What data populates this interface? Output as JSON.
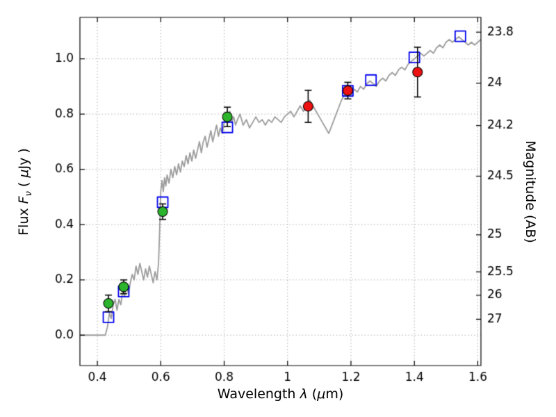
{
  "figure": {
    "background": "#ffffff",
    "frame_color": "#000000",
    "grid_color": "#b0b0b0",
    "tick_label_color": "#000000"
  },
  "chart_data": {
    "type": "line+scatter",
    "title": "",
    "xlabel": "Wavelength  λ (μm)",
    "xlabel_parts": {
      "pre": "Wavelength  ",
      "symbol": "λ",
      "paren": " (",
      "mu": "μ",
      "unit": "m)"
    },
    "ylabel_left": "Flux  F_ν  ( μJy )",
    "ylabel_left_parts": {
      "pre": "Flux  ",
      "symbol": "F",
      "sub": "ν",
      "paren": "  ( ",
      "mu": "μ",
      "unit": "Jy )"
    },
    "ylabel_right": "Magnitude (AB)",
    "xlim": [
      0.345,
      1.61
    ],
    "ylim": [
      -0.11,
      1.15
    ],
    "grid": "dotted",
    "legend": "none",
    "x_ticks": [
      {
        "value": 0.4,
        "label": "0.4"
      },
      {
        "value": 0.6,
        "label": "0.6"
      },
      {
        "value": 0.8,
        "label": "0.8"
      },
      {
        "value": 1.0,
        "label": "1"
      },
      {
        "value": 1.2,
        "label": "1.2"
      },
      {
        "value": 1.4,
        "label": "1.4"
      },
      {
        "value": 1.6,
        "label": "1.6"
      }
    ],
    "y_ticks_left": [
      {
        "value": 0.0,
        "label": "0.0"
      },
      {
        "value": 0.2,
        "label": "0.2"
      },
      {
        "value": 0.4,
        "label": "0.4"
      },
      {
        "value": 0.6,
        "label": "0.6"
      },
      {
        "value": 0.8,
        "label": "0.8"
      },
      {
        "value": 1.0,
        "label": "1.0"
      }
    ],
    "y_ticks_right": [
      {
        "label": "23.8",
        "flux": 1.0965
      },
      {
        "label": "24",
        "flux": 0.912
      },
      {
        "label": "24.2",
        "flux": 0.7586
      },
      {
        "label": "24.5",
        "flux": 0.5754
      },
      {
        "label": "25",
        "flux": 0.3631
      },
      {
        "label": "25.5",
        "flux": 0.2291
      },
      {
        "label": "26",
        "flux": 0.1445
      },
      {
        "label": "27",
        "flux": 0.0575
      }
    ],
    "series": {
      "model_spectrum": {
        "name": "model-spectrum",
        "type": "line",
        "color": "#9b9b9b",
        "line_width": 1.8,
        "points": [
          [
            0.345,
            0.0
          ],
          [
            0.38,
            0.0
          ],
          [
            0.41,
            0.0
          ],
          [
            0.425,
            0.0
          ],
          [
            0.432,
            0.03
          ],
          [
            0.438,
            0.08
          ],
          [
            0.444,
            0.06
          ],
          [
            0.45,
            0.11
          ],
          [
            0.456,
            0.13
          ],
          [
            0.462,
            0.09
          ],
          [
            0.468,
            0.13
          ],
          [
            0.474,
            0.11
          ],
          [
            0.48,
            0.16
          ],
          [
            0.486,
            0.14
          ],
          [
            0.492,
            0.18
          ],
          [
            0.498,
            0.15
          ],
          [
            0.504,
            0.19
          ],
          [
            0.51,
            0.22
          ],
          [
            0.516,
            0.2
          ],
          [
            0.522,
            0.25
          ],
          [
            0.528,
            0.22
          ],
          [
            0.534,
            0.26
          ],
          [
            0.54,
            0.23
          ],
          [
            0.546,
            0.2
          ],
          [
            0.552,
            0.24
          ],
          [
            0.558,
            0.21
          ],
          [
            0.564,
            0.25
          ],
          [
            0.57,
            0.22
          ],
          [
            0.576,
            0.19
          ],
          [
            0.582,
            0.23
          ],
          [
            0.588,
            0.2
          ],
          [
            0.593,
            0.26
          ],
          [
            0.597,
            0.4
          ],
          [
            0.6,
            0.52
          ],
          [
            0.604,
            0.56
          ],
          [
            0.608,
            0.52
          ],
          [
            0.612,
            0.57
          ],
          [
            0.616,
            0.54
          ],
          [
            0.62,
            0.58
          ],
          [
            0.626,
            0.55
          ],
          [
            0.632,
            0.6
          ],
          [
            0.638,
            0.57
          ],
          [
            0.644,
            0.61
          ],
          [
            0.65,
            0.58
          ],
          [
            0.656,
            0.62
          ],
          [
            0.662,
            0.59
          ],
          [
            0.668,
            0.63
          ],
          [
            0.674,
            0.61
          ],
          [
            0.68,
            0.65
          ],
          [
            0.686,
            0.62
          ],
          [
            0.692,
            0.66
          ],
          [
            0.698,
            0.63
          ],
          [
            0.704,
            0.67
          ],
          [
            0.71,
            0.64
          ],
          [
            0.716,
            0.67
          ],
          [
            0.722,
            0.7
          ],
          [
            0.728,
            0.66
          ],
          [
            0.734,
            0.7
          ],
          [
            0.74,
            0.72
          ],
          [
            0.746,
            0.68
          ],
          [
            0.752,
            0.71
          ],
          [
            0.758,
            0.74
          ],
          [
            0.764,
            0.7
          ],
          [
            0.77,
            0.73
          ],
          [
            0.776,
            0.76
          ],
          [
            0.782,
            0.72
          ],
          [
            0.788,
            0.75
          ],
          [
            0.794,
            0.73
          ],
          [
            0.8,
            0.77
          ],
          [
            0.806,
            0.8
          ],
          [
            0.812,
            0.78
          ],
          [
            0.818,
            0.81
          ],
          [
            0.824,
            0.77
          ],
          [
            0.83,
            0.79
          ],
          [
            0.836,
            0.76
          ],
          [
            0.842,
            0.78
          ],
          [
            0.85,
            0.8
          ],
          [
            0.86,
            0.76
          ],
          [
            0.87,
            0.78
          ],
          [
            0.88,
            0.75
          ],
          [
            0.89,
            0.77
          ],
          [
            0.9,
            0.79
          ],
          [
            0.91,
            0.77
          ],
          [
            0.92,
            0.78
          ],
          [
            0.93,
            0.76
          ],
          [
            0.94,
            0.78
          ],
          [
            0.95,
            0.77
          ],
          [
            0.96,
            0.79
          ],
          [
            0.97,
            0.78
          ],
          [
            0.98,
            0.77
          ],
          [
            0.99,
            0.79
          ],
          [
            1.0,
            0.8
          ],
          [
            1.01,
            0.81
          ],
          [
            1.02,
            0.79
          ],
          [
            1.03,
            0.81
          ],
          [
            1.04,
            0.83
          ],
          [
            1.05,
            0.81
          ],
          [
            1.06,
            0.83
          ],
          [
            1.07,
            0.85
          ],
          [
            1.08,
            0.83
          ],
          [
            1.09,
            0.81
          ],
          [
            1.1,
            0.79
          ],
          [
            1.11,
            0.77
          ],
          [
            1.12,
            0.75
          ],
          [
            1.13,
            0.73
          ],
          [
            1.14,
            0.76
          ],
          [
            1.15,
            0.79
          ],
          [
            1.16,
            0.82
          ],
          [
            1.17,
            0.85
          ],
          [
            1.18,
            0.87
          ],
          [
            1.19,
            0.88
          ],
          [
            1.2,
            0.87
          ],
          [
            1.21,
            0.89
          ],
          [
            1.22,
            0.88
          ],
          [
            1.23,
            0.9
          ],
          [
            1.24,
            0.89
          ],
          [
            1.25,
            0.91
          ],
          [
            1.26,
            0.92
          ],
          [
            1.27,
            0.91
          ],
          [
            1.28,
            0.9
          ],
          [
            1.29,
            0.92
          ],
          [
            1.3,
            0.93
          ],
          [
            1.31,
            0.92
          ],
          [
            1.32,
            0.94
          ],
          [
            1.33,
            0.95
          ],
          [
            1.34,
            0.94
          ],
          [
            1.35,
            0.96
          ],
          [
            1.36,
            0.97
          ],
          [
            1.37,
            0.96
          ],
          [
            1.38,
            0.98
          ],
          [
            1.39,
            0.99
          ],
          [
            1.4,
            1.0
          ],
          [
            1.41,
            1.01
          ],
          [
            1.42,
            1.02
          ],
          [
            1.43,
            1.01
          ],
          [
            1.44,
            1.02
          ],
          [
            1.45,
            1.03
          ],
          [
            1.46,
            1.02
          ],
          [
            1.47,
            1.04
          ],
          [
            1.48,
            1.05
          ],
          [
            1.49,
            1.04
          ],
          [
            1.5,
            1.06
          ],
          [
            1.51,
            1.07
          ],
          [
            1.52,
            1.06
          ],
          [
            1.53,
            1.07
          ],
          [
            1.54,
            1.08
          ],
          [
            1.55,
            1.07
          ],
          [
            1.56,
            1.06
          ],
          [
            1.57,
            1.05
          ],
          [
            1.58,
            1.06
          ],
          [
            1.59,
            1.05
          ],
          [
            1.6,
            1.06
          ],
          [
            1.61,
            1.07
          ]
        ]
      },
      "model_photometry": {
        "name": "model-photometry",
        "type": "scatter",
        "marker": "open-square",
        "color": "#0000ee",
        "marker_size": 15,
        "points": [
          [
            0.435,
            0.065
          ],
          [
            0.483,
            0.158
          ],
          [
            0.606,
            0.481
          ],
          [
            0.81,
            0.752
          ],
          [
            1.19,
            0.884
          ],
          [
            1.263,
            0.923
          ],
          [
            1.4,
            1.005
          ],
          [
            1.545,
            1.082
          ]
        ]
      },
      "observed_optical": {
        "name": "observed-photometry-optical",
        "type": "scatter",
        "marker": "filled-circle",
        "color": "#2cb42c",
        "errorbar_color": "#000000",
        "points": [
          {
            "x": 0.435,
            "y": 0.115,
            "yerr": 0.03
          },
          {
            "x": 0.483,
            "y": 0.175,
            "yerr": 0.025
          },
          {
            "x": 0.606,
            "y": 0.447,
            "yerr": 0.028
          },
          {
            "x": 0.81,
            "y": 0.79,
            "yerr": 0.035
          }
        ]
      },
      "observed_infrared": {
        "name": "observed-photometry-infrared",
        "type": "scatter",
        "marker": "filled-circle",
        "color": "#ee1111",
        "errorbar_color": "#000000",
        "points": [
          {
            "x": 1.065,
            "y": 0.828,
            "yerr": 0.058
          },
          {
            "x": 1.19,
            "y": 0.885,
            "yerr": 0.03
          },
          {
            "x": 1.41,
            "y": 0.952,
            "yerr": 0.09
          }
        ]
      }
    }
  }
}
